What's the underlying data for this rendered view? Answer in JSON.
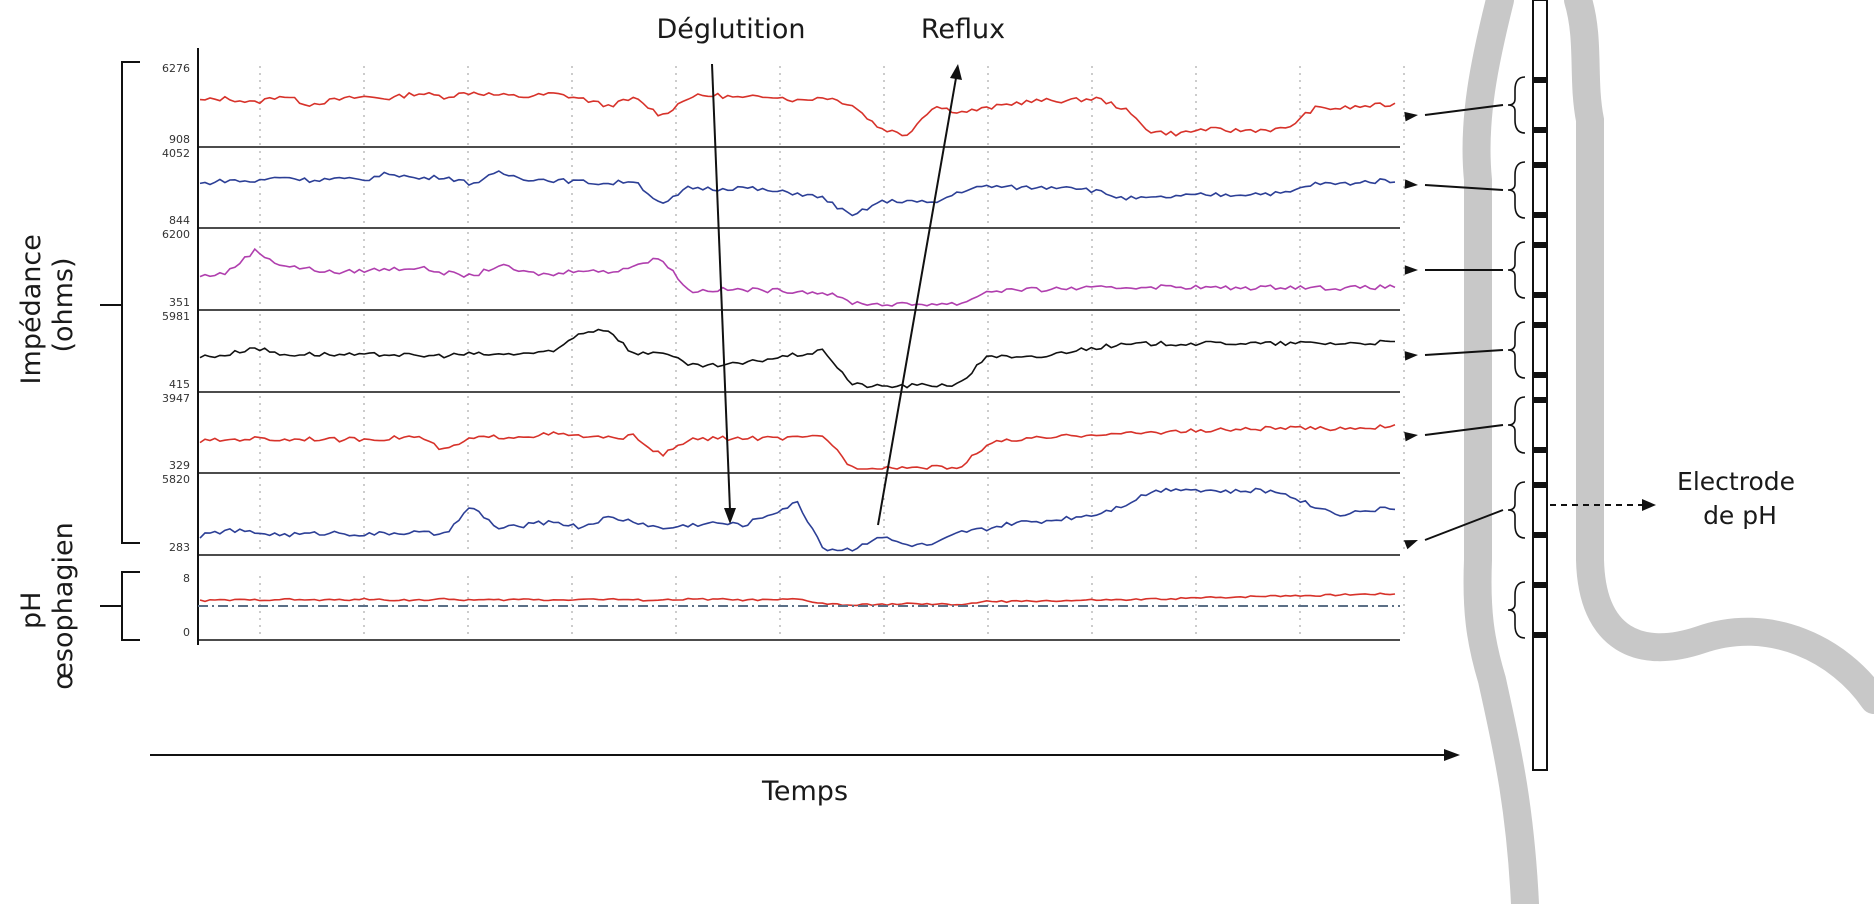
{
  "annotations": {
    "deglutition": "Déglutition",
    "reflux": "Reflux",
    "electrode": [
      "Electrode",
      "de pH"
    ]
  },
  "axis_labels": {
    "impedance": [
      "Impédance",
      "(ohms)"
    ],
    "ph": [
      "pH",
      "œsophagien"
    ],
    "time": "Temps"
  },
  "colors": {
    "red": "#d7322a",
    "blue": "#2c3f96",
    "magenta": "#b03fae",
    "black": "#111111",
    "esophagus": "#c8c8c8",
    "ph_dashdot": "#5b6f86"
  },
  "chart_data": {
    "type": "line",
    "x": "time (unlabelled)",
    "channels": [
      {
        "kind": "impedance",
        "color": "red",
        "ymax": 6276,
        "ymin": 908,
        "ylabels": [
          "6276",
          "908"
        ],
        "values": [
          0.55,
          0.58,
          0.52,
          0.62,
          0.5,
          0.56,
          0.6,
          0.58,
          0.65,
          0.6,
          0.66,
          0.62,
          0.6,
          0.64,
          0.58,
          0.48,
          0.58,
          0.35,
          0.6,
          0.62,
          0.58,
          0.62,
          0.55,
          0.6,
          0.5,
          0.2,
          0.1,
          0.48,
          0.4,
          0.45,
          0.52,
          0.55,
          0.55,
          0.58,
          0.45,
          0.15,
          0.12,
          0.18,
          0.16,
          0.17,
          0.18,
          0.45,
          0.45,
          0.48,
          0.5
        ]
      },
      {
        "kind": "impedance",
        "color": "blue",
        "ymax": 4052,
        "ymin": 844,
        "ylabels": [
          "4052",
          "844"
        ],
        "values": [
          0.55,
          0.6,
          0.58,
          0.65,
          0.6,
          0.62,
          0.6,
          0.7,
          0.62,
          0.65,
          0.55,
          0.7,
          0.62,
          0.6,
          0.58,
          0.55,
          0.6,
          0.25,
          0.5,
          0.48,
          0.5,
          0.45,
          0.42,
          0.35,
          0.1,
          0.3,
          0.32,
          0.28,
          0.45,
          0.52,
          0.5,
          0.5,
          0.52,
          0.45,
          0.35,
          0.35,
          0.38,
          0.4,
          0.4,
          0.42,
          0.42,
          0.55,
          0.55,
          0.58,
          0.6
        ]
      },
      {
        "kind": "impedance",
        "color": "magenta",
        "ymax": 6200,
        "ymin": 351,
        "ylabels": [
          "6200",
          "351"
        ],
        "values": [
          0.4,
          0.45,
          0.75,
          0.55,
          0.5,
          0.45,
          0.48,
          0.5,
          0.52,
          0.45,
          0.4,
          0.55,
          0.45,
          0.42,
          0.5,
          0.45,
          0.55,
          0.65,
          0.2,
          0.22,
          0.22,
          0.21,
          0.2,
          0.18,
          0.05,
          0.02,
          0.02,
          0.03,
          0.03,
          0.2,
          0.22,
          0.22,
          0.24,
          0.24,
          0.25,
          0.26,
          0.26,
          0.25,
          0.24,
          0.25,
          0.26,
          0.25,
          0.24,
          0.25,
          0.26
        ]
      },
      {
        "kind": "impedance",
        "color": "black",
        "ymax": 5981,
        "ymin": 415,
        "ylabels": [
          "5981",
          "415"
        ],
        "values": [
          0.42,
          0.45,
          0.55,
          0.45,
          0.46,
          0.45,
          0.44,
          0.46,
          0.43,
          0.44,
          0.46,
          0.45,
          0.47,
          0.48,
          0.75,
          0.8,
          0.45,
          0.5,
          0.3,
          0.3,
          0.33,
          0.4,
          0.45,
          0.5,
          0.05,
          0.02,
          0.03,
          0.04,
          0.05,
          0.45,
          0.4,
          0.42,
          0.5,
          0.55,
          0.58,
          0.6,
          0.6,
          0.6,
          0.61,
          0.6,
          0.6,
          0.61,
          0.6,
          0.61,
          0.62
        ]
      },
      {
        "kind": "impedance",
        "color": "red",
        "ymax": 3947,
        "ymin": 329,
        "ylabels": [
          "3947",
          "329"
        ],
        "values": [
          0.38,
          0.4,
          0.42,
          0.4,
          0.42,
          0.4,
          0.41,
          0.42,
          0.45,
          0.25,
          0.42,
          0.44,
          0.45,
          0.48,
          0.45,
          0.42,
          0.45,
          0.18,
          0.4,
          0.42,
          0.42,
          0.42,
          0.42,
          0.45,
          0.02,
          0.02,
          0.02,
          0.02,
          0.02,
          0.35,
          0.4,
          0.42,
          0.45,
          0.48,
          0.48,
          0.5,
          0.52,
          0.52,
          0.54,
          0.55,
          0.56,
          0.55,
          0.56,
          0.57,
          0.58
        ]
      },
      {
        "kind": "impedance",
        "color": "blue",
        "ymax": 5820,
        "ymin": 283,
        "ylabels": [
          "5820",
          "283"
        ],
        "values": [
          0.2,
          0.28,
          0.25,
          0.22,
          0.23,
          0.25,
          0.22,
          0.24,
          0.25,
          0.22,
          0.6,
          0.3,
          0.35,
          0.4,
          0.32,
          0.45,
          0.4,
          0.3,
          0.35,
          0.38,
          0.35,
          0.5,
          0.65,
          0.02,
          0.02,
          0.2,
          0.08,
          0.08,
          0.25,
          0.3,
          0.38,
          0.4,
          0.45,
          0.5,
          0.62,
          0.8,
          0.85,
          0.82,
          0.8,
          0.82,
          0.78,
          0.6,
          0.5,
          0.55,
          0.58
        ]
      },
      {
        "kind": "ph",
        "color": "red",
        "ymax": 8,
        "ymin": 0,
        "ylabels": [
          "8",
          "0"
        ],
        "threshold": 4,
        "values": [
          4.7,
          4.8,
          4.8,
          4.9,
          4.8,
          4.8,
          4.9,
          4.8,
          4.8,
          4.9,
          4.8,
          4.8,
          4.9,
          4.8,
          4.9,
          4.9,
          4.8,
          4.8,
          4.9,
          4.9,
          4.8,
          4.8,
          4.9,
          4.3,
          4.1,
          4.2,
          4.3,
          4.2,
          4.2,
          4.6,
          4.6,
          4.7,
          4.7,
          4.8,
          4.8,
          4.9,
          5.0,
          5.1,
          5.2,
          5.3,
          5.4,
          5.4,
          5.5,
          5.6,
          5.6
        ]
      }
    ]
  }
}
